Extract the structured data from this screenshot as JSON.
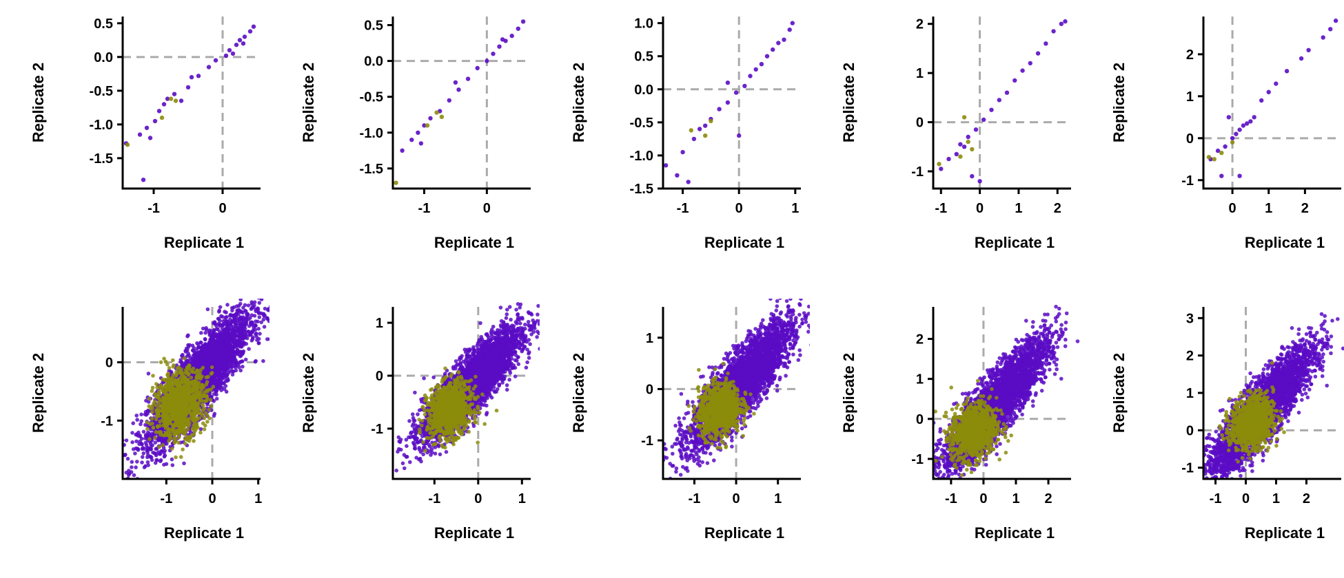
{
  "colors": {
    "background": "#ffffff",
    "axis": "#000000",
    "reference_lines": "#aaaaaa",
    "series_primary": "#5b0cc4",
    "series_highlight": "#8c8c0c"
  },
  "chart_data": [
    {
      "type": "scatter",
      "row": 1,
      "column": 1,
      "xlabel": "Replicate 1",
      "ylabel": "Replicate 2",
      "xlim": [
        -1.45,
        0.55
      ],
      "ylim": [
        -1.95,
        0.6
      ],
      "xticks": [
        -1,
        0
      ],
      "xtick_labels": [
        "-1",
        "0"
      ],
      "yticks": [
        -1.5,
        -1.0,
        -0.5,
        0.0,
        0.5
      ],
      "ytick_labels": [
        "-1.5",
        "-1.0",
        "-0.5",
        "0.0",
        "0.5"
      ],
      "reference_lines": {
        "x": 0,
        "y": 0,
        "style": "dashed"
      },
      "grid": false,
      "series": [
        {
          "role": "primary",
          "points": [
            [
              -1.4,
              -1.28
            ],
            [
              -1.15,
              -1.82
            ],
            [
              -1.2,
              -1.15
            ],
            [
              -1.1,
              -1.05
            ],
            [
              -1.05,
              -1.2
            ],
            [
              -0.98,
              -0.95
            ],
            [
              -0.92,
              -0.8
            ],
            [
              -0.85,
              -0.7
            ],
            [
              -0.8,
              -0.62
            ],
            [
              -0.7,
              -0.55
            ],
            [
              -0.6,
              -0.65
            ],
            [
              -0.5,
              -0.45
            ],
            [
              -0.45,
              -0.3
            ],
            [
              -0.35,
              -0.28
            ],
            [
              -0.2,
              -0.15
            ],
            [
              -0.1,
              -0.05
            ],
            [
              0.05,
              0.02
            ],
            [
              0.1,
              0.1
            ],
            [
              0.2,
              0.18
            ],
            [
              0.25,
              0.25
            ],
            [
              0.32,
              0.3
            ],
            [
              0.4,
              0.38
            ],
            [
              0.45,
              0.45
            ],
            [
              0.3,
              0.2
            ],
            [
              0.15,
              0.05
            ]
          ]
        },
        {
          "role": "highlight",
          "points": [
            [
              -1.38,
              -1.3
            ],
            [
              -0.75,
              -0.62
            ],
            [
              -0.68,
              -0.65
            ],
            [
              -0.88,
              -0.9
            ]
          ]
        }
      ]
    },
    {
      "type": "scatter",
      "row": 1,
      "column": 2,
      "xlabel": "Replicate 1",
      "ylabel": "Replicate 2",
      "xlim": [
        -1.5,
        0.7
      ],
      "ylim": [
        -1.78,
        0.62
      ],
      "xticks": [
        -1,
        0
      ],
      "xtick_labels": [
        "-1",
        "0"
      ],
      "yticks": [
        -1.5,
        -1.0,
        -0.5,
        0.0,
        0.5
      ],
      "ytick_labels": [
        "-1.5",
        "-1.0",
        "-0.5",
        "0.0",
        "0.5"
      ],
      "reference_lines": {
        "x": 0,
        "y": 0,
        "style": "dashed"
      },
      "grid": false,
      "series": [
        {
          "role": "primary",
          "points": [
            [
              -1.35,
              -1.25
            ],
            [
              -1.2,
              -1.1
            ],
            [
              -1.1,
              -1.0
            ],
            [
              -1.0,
              -0.9
            ],
            [
              -0.9,
              -0.8
            ],
            [
              -0.75,
              -0.7
            ],
            [
              -0.6,
              -0.55
            ],
            [
              -0.45,
              -0.4
            ],
            [
              -0.3,
              -0.25
            ],
            [
              -0.15,
              -0.1
            ],
            [
              0.0,
              0.0
            ],
            [
              0.1,
              0.1
            ],
            [
              0.2,
              0.2
            ],
            [
              0.3,
              0.28
            ],
            [
              0.4,
              0.35
            ],
            [
              0.5,
              0.45
            ],
            [
              0.58,
              0.55
            ],
            [
              -1.05,
              -1.15
            ],
            [
              -0.5,
              -0.3
            ],
            [
              0.25,
              0.3
            ]
          ]
        },
        {
          "role": "highlight",
          "points": [
            [
              -1.45,
              -1.7
            ],
            [
              -0.8,
              -0.72
            ],
            [
              -0.72,
              -0.78
            ],
            [
              -0.95,
              -0.9
            ]
          ]
        }
      ]
    },
    {
      "type": "scatter",
      "row": 1,
      "column": 3,
      "xlabel": "Replicate 1",
      "ylabel": "Replicate 2",
      "xlim": [
        -1.35,
        1.1
      ],
      "ylim": [
        -1.5,
        1.1
      ],
      "xticks": [
        -1,
        0,
        1
      ],
      "xtick_labels": [
        "-1",
        "0",
        "1"
      ],
      "yticks": [
        -1.5,
        -1.0,
        -0.5,
        0.0,
        0.5,
        1.0
      ],
      "ytick_labels": [
        "-1.5",
        "-1.0",
        "-0.5",
        "0.0",
        "0.5",
        "1.0"
      ],
      "reference_lines": {
        "x": 0,
        "y": 0,
        "style": "dashed"
      },
      "grid": false,
      "series": [
        {
          "role": "primary",
          "points": [
            [
              -1.3,
              -1.15
            ],
            [
              -1.1,
              -1.3
            ],
            [
              -1.0,
              -0.95
            ],
            [
              -0.9,
              -1.4
            ],
            [
              -0.8,
              -0.75
            ],
            [
              -0.7,
              -0.6
            ],
            [
              -0.6,
              -0.55
            ],
            [
              -0.5,
              -0.45
            ],
            [
              -0.35,
              -0.3
            ],
            [
              -0.2,
              -0.2
            ],
            [
              -0.05,
              -0.05
            ],
            [
              0.1,
              0.05
            ],
            [
              0.2,
              0.2
            ],
            [
              0.3,
              0.3
            ],
            [
              0.4,
              0.38
            ],
            [
              0.5,
              0.5
            ],
            [
              0.6,
              0.6
            ],
            [
              0.7,
              0.7
            ],
            [
              0.8,
              0.75
            ],
            [
              0.9,
              0.9
            ],
            [
              0.95,
              1.0
            ],
            [
              0.0,
              -0.7
            ],
            [
              -0.2,
              0.1
            ]
          ]
        },
        {
          "role": "highlight",
          "points": [
            [
              -0.85,
              -0.62
            ],
            [
              -0.6,
              -0.7
            ],
            [
              -0.5,
              -0.48
            ]
          ]
        }
      ]
    },
    {
      "type": "scatter",
      "row": 1,
      "column": 4,
      "xlabel": "Replicate 1",
      "ylabel": "Replicate 2",
      "xlim": [
        -1.2,
        2.35
      ],
      "ylim": [
        -1.35,
        2.15
      ],
      "xticks": [
        -1,
        0,
        1,
        2
      ],
      "xtick_labels": [
        "-1",
        "0",
        "1",
        "2"
      ],
      "yticks": [
        -1,
        0,
        1,
        2
      ],
      "ytick_labels": [
        "-1",
        "0",
        "1",
        "2"
      ],
      "reference_lines": {
        "x": 0,
        "y": 0,
        "style": "dashed"
      },
      "grid": false,
      "series": [
        {
          "role": "primary",
          "points": [
            [
              -1.0,
              -0.95
            ],
            [
              -0.8,
              -0.75
            ],
            [
              -0.6,
              -0.65
            ],
            [
              -0.5,
              -0.45
            ],
            [
              -0.4,
              -0.5
            ],
            [
              -0.3,
              -0.3
            ],
            [
              -0.1,
              -0.15
            ],
            [
              0.1,
              0.05
            ],
            [
              0.3,
              0.25
            ],
            [
              0.5,
              0.45
            ],
            [
              0.7,
              0.6
            ],
            [
              0.9,
              0.85
            ],
            [
              1.1,
              1.05
            ],
            [
              1.3,
              1.2
            ],
            [
              1.5,
              1.4
            ],
            [
              1.7,
              1.6
            ],
            [
              1.9,
              1.85
            ],
            [
              2.1,
              2.0
            ],
            [
              2.2,
              2.05
            ],
            [
              -0.2,
              -1.1
            ],
            [
              0.0,
              -1.2
            ]
          ]
        },
        {
          "role": "highlight",
          "points": [
            [
              -1.05,
              -0.85
            ],
            [
              -0.5,
              -0.7
            ],
            [
              -0.3,
              -0.4
            ],
            [
              -0.2,
              -0.55
            ],
            [
              -0.4,
              0.1
            ]
          ]
        }
      ]
    },
    {
      "type": "scatter",
      "row": 1,
      "column": 5,
      "xlabel": "Replicate 1",
      "ylabel": "Replicate 2",
      "xlim": [
        -0.8,
        3.0
      ],
      "ylim": [
        -1.2,
        2.9
      ],
      "xticks": [
        0,
        1,
        2
      ],
      "xtick_labels": [
        "0",
        "1",
        "2"
      ],
      "yticks": [
        -1,
        0,
        1,
        2
      ],
      "ytick_labels": [
        "-1",
        "0",
        "1",
        "2"
      ],
      "reference_lines": {
        "x": 0,
        "y": 0,
        "style": "dashed"
      },
      "grid": false,
      "series": [
        {
          "role": "primary",
          "points": [
            [
              -0.6,
              -0.5
            ],
            [
              -0.4,
              -0.3
            ],
            [
              -0.2,
              -0.2
            ],
            [
              0.0,
              0.0
            ],
            [
              0.1,
              0.1
            ],
            [
              0.2,
              0.2
            ],
            [
              0.3,
              0.3
            ],
            [
              0.4,
              0.35
            ],
            [
              0.5,
              0.4
            ],
            [
              0.6,
              0.5
            ],
            [
              0.8,
              0.9
            ],
            [
              1.0,
              1.1
            ],
            [
              1.2,
              1.3
            ],
            [
              1.5,
              1.6
            ],
            [
              1.9,
              1.9
            ],
            [
              2.1,
              2.1
            ],
            [
              2.5,
              2.4
            ],
            [
              2.7,
              2.6
            ],
            [
              2.85,
              2.8
            ],
            [
              -0.3,
              -0.9
            ],
            [
              0.2,
              -0.9
            ],
            [
              -0.1,
              0.5
            ]
          ]
        },
        {
          "role": "highlight",
          "points": [
            [
              -0.65,
              -0.45
            ],
            [
              -0.5,
              -0.5
            ],
            [
              -0.3,
              -0.35
            ],
            [
              0.0,
              -0.1
            ]
          ]
        }
      ]
    },
    {
      "type": "scatter",
      "row": 2,
      "column": 1,
      "xlabel": "Replicate 1",
      "ylabel": "Replicate 2",
      "xlim": [
        -1.95,
        1.05
      ],
      "ylim": [
        -2.0,
        0.95
      ],
      "xticks": [
        -1,
        0,
        1
      ],
      "xtick_labels": [
        "-1",
        "0",
        "1"
      ],
      "yticks": [
        -1,
        0
      ],
      "ytick_labels": [
        "-1",
        "0"
      ],
      "reference_lines": {
        "x": 0,
        "y": 0,
        "style": "dashed"
      },
      "grid": false,
      "series": [
        {
          "role": "primary",
          "cloud": {
            "center": [
              -0.3,
              -0.3
            ],
            "spread": [
              0.55,
              0.55
            ],
            "correlation": 0.85,
            "n": 3500
          }
        },
        {
          "role": "highlight",
          "cloud": {
            "center": [
              -0.7,
              -0.7
            ],
            "spread": [
              0.28,
              0.28
            ],
            "correlation": 0.2,
            "n": 1000
          }
        }
      ]
    },
    {
      "type": "scatter",
      "row": 2,
      "column": 2,
      "xlabel": "Replicate 1",
      "ylabel": "Replicate 2",
      "xlim": [
        -1.95,
        1.2
      ],
      "ylim": [
        -1.95,
        1.3
      ],
      "xticks": [
        -1,
        0,
        1
      ],
      "xtick_labels": [
        "-1",
        "0",
        "1"
      ],
      "yticks": [
        -1,
        0,
        1
      ],
      "ytick_labels": [
        "-1",
        "0",
        "1"
      ],
      "reference_lines": {
        "x": 0,
        "y": 0,
        "style": "dashed"
      },
      "grid": false,
      "series": [
        {
          "role": "primary",
          "cloud": {
            "center": [
              -0.15,
              -0.15
            ],
            "spread": [
              0.55,
              0.52
            ],
            "correlation": 0.85,
            "n": 3500
          }
        },
        {
          "role": "highlight",
          "cloud": {
            "center": [
              -0.65,
              -0.65
            ],
            "spread": [
              0.25,
              0.25
            ],
            "correlation": 0.2,
            "n": 1000
          }
        }
      ]
    },
    {
      "type": "scatter",
      "row": 2,
      "column": 3,
      "xlabel": "Replicate 1",
      "ylabel": "Replicate 2",
      "xlim": [
        -1.75,
        1.55
      ],
      "ylim": [
        -1.75,
        1.6
      ],
      "xticks": [
        -1,
        0,
        1
      ],
      "xtick_labels": [
        "-1",
        "0",
        "1"
      ],
      "yticks": [
        -1,
        0,
        1
      ],
      "ytick_labels": [
        "-1",
        "0",
        "1"
      ],
      "reference_lines": {
        "x": 0,
        "y": 0,
        "style": "dashed"
      },
      "grid": false,
      "series": [
        {
          "role": "primary",
          "cloud": {
            "center": [
              0.1,
              0.1
            ],
            "spread": [
              0.6,
              0.6
            ],
            "correlation": 0.85,
            "n": 3500
          }
        },
        {
          "role": "highlight",
          "cloud": {
            "center": [
              -0.4,
              -0.4
            ],
            "spread": [
              0.25,
              0.25
            ],
            "correlation": 0.2,
            "n": 1000
          }
        }
      ]
    },
    {
      "type": "scatter",
      "row": 2,
      "column": 4,
      "xlabel": "Replicate 1",
      "ylabel": "Replicate 2",
      "xlim": [
        -1.55,
        2.7
      ],
      "ylim": [
        -1.5,
        2.8
      ],
      "xticks": [
        -1,
        0,
        1,
        2
      ],
      "xtick_labels": [
        "-1",
        "0",
        "1",
        "2"
      ],
      "yticks": [
        -1,
        0,
        1,
        2
      ],
      "ytick_labels": [
        "-1",
        "0",
        "1",
        "2"
      ],
      "reference_lines": {
        "x": 0,
        "y": 0,
        "style": "dashed"
      },
      "grid": false,
      "series": [
        {
          "role": "primary",
          "cloud": {
            "center": [
              0.35,
              0.35
            ],
            "spread": [
              0.8,
              0.8
            ],
            "correlation": 0.88,
            "n": 3500
          }
        },
        {
          "role": "highlight",
          "cloud": {
            "center": [
              -0.3,
              -0.3
            ],
            "spread": [
              0.35,
              0.35
            ],
            "correlation": 0.2,
            "n": 1000
          }
        }
      ]
    },
    {
      "type": "scatter",
      "row": 2,
      "column": 5,
      "xlabel": "Replicate 1",
      "ylabel": "Replicate 2",
      "xlim": [
        -1.4,
        3.15
      ],
      "ylim": [
        -1.3,
        3.3
      ],
      "xticks": [
        -1,
        0,
        1,
        2
      ],
      "xtick_labels": [
        "-1",
        "0",
        "1",
        "2"
      ],
      "yticks": [
        -1,
        0,
        1,
        2,
        3
      ],
      "ytick_labels": [
        "-1",
        "0",
        "1",
        "2",
        "3"
      ],
      "reference_lines": {
        "x": 0,
        "y": 0,
        "style": "dashed"
      },
      "grid": false,
      "series": [
        {
          "role": "primary",
          "cloud": {
            "center": [
              0.5,
              0.5
            ],
            "spread": [
              0.85,
              0.85
            ],
            "correlation": 0.88,
            "n": 3500
          }
        },
        {
          "role": "highlight",
          "cloud": {
            "center": [
              0.2,
              0.2
            ],
            "spread": [
              0.35,
              0.35
            ],
            "correlation": 0.2,
            "n": 1000
          }
        }
      ]
    }
  ]
}
